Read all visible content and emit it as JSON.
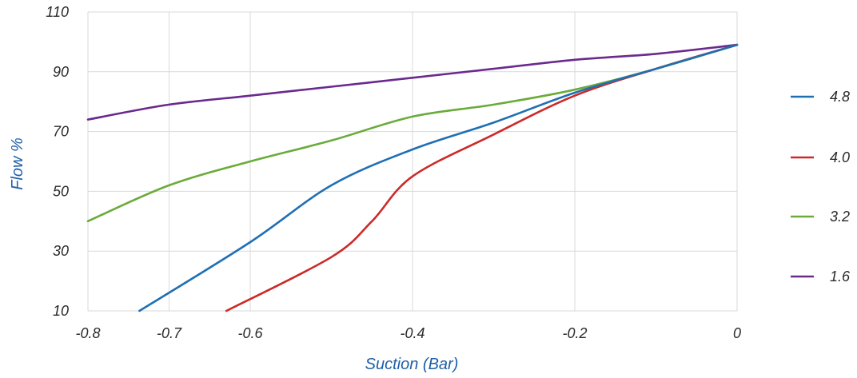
{
  "chart_data": {
    "type": "line",
    "title": "",
    "xlabel": "Suction (Bar)",
    "ylabel": "Flow %",
    "xlim": [
      -0.8,
      0
    ],
    "ylim": [
      10,
      110
    ],
    "x_ticks": [
      "-0.8",
      "-0.7",
      "-0.6",
      "-0.4",
      "-0.2",
      "0"
    ],
    "y_ticks": [
      "10",
      "30",
      "50",
      "70",
      "90",
      "110"
    ],
    "grid": true,
    "legend_position": "right",
    "series": [
      {
        "name": "4.8",
        "color": "#1f6fb4",
        "points": [
          [
            -0.7366,
            10
          ],
          [
            -0.6,
            33
          ],
          [
            -0.5,
            52
          ],
          [
            -0.4,
            64
          ],
          [
            -0.3,
            73
          ],
          [
            -0.2,
            83
          ],
          [
            -0.1,
            91
          ],
          [
            0.0,
            99
          ]
        ]
      },
      {
        "name": "4.0",
        "color": "#cc2a2a",
        "points": [
          [
            -0.6294,
            10
          ],
          [
            -0.5,
            28
          ],
          [
            -0.45,
            40
          ],
          [
            -0.4,
            55
          ],
          [
            -0.3,
            69
          ],
          [
            -0.2,
            82
          ],
          [
            -0.1,
            91
          ],
          [
            0.0,
            99
          ]
        ]
      },
      {
        "name": "3.2",
        "color": "#6aab3a",
        "points": [
          [
            -0.8,
            40
          ],
          [
            -0.7,
            52
          ],
          [
            -0.6,
            60
          ],
          [
            -0.5,
            67
          ],
          [
            -0.4,
            75
          ],
          [
            -0.3,
            79
          ],
          [
            -0.2,
            84
          ],
          [
            -0.1,
            91
          ],
          [
            0.0,
            99
          ]
        ]
      },
      {
        "name": "1.6",
        "color": "#6a2a8e",
        "points": [
          [
            -0.8,
            74
          ],
          [
            -0.7,
            79
          ],
          [
            -0.6,
            82
          ],
          [
            -0.5,
            85
          ],
          [
            -0.4,
            88
          ],
          [
            -0.3,
            91
          ],
          [
            -0.2,
            94
          ],
          [
            -0.1,
            96
          ],
          [
            0.0,
            99
          ]
        ]
      }
    ]
  }
}
